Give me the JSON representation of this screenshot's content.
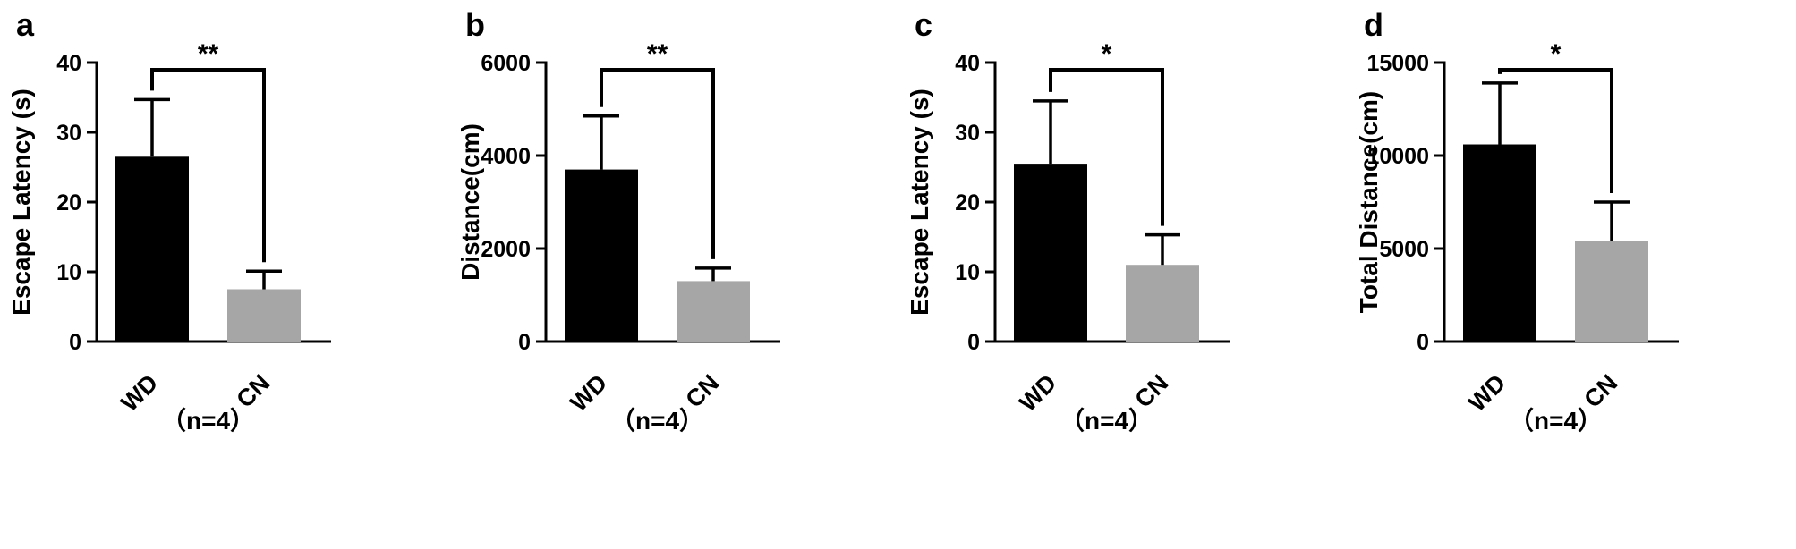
{
  "figure": {
    "background": "#ffffff",
    "bar_color_wd": "#000000",
    "bar_color_cn": "#a6a6a6",
    "line_color": "#000000"
  },
  "chart_data": [
    {
      "type": "bar",
      "panel_label": "a",
      "ylabel": "Escape Latency (s)",
      "xlabel": "",
      "ylim": [
        0,
        40
      ],
      "yticks": [
        0,
        10,
        20,
        30,
        40
      ],
      "categories": [
        "WD",
        "CN"
      ],
      "values": [
        26.5,
        7.5
      ],
      "errors_plus": [
        8.2,
        2.6
      ],
      "bar_colors": [
        "#000000",
        "#a6a6a6"
      ],
      "significance": "**",
      "sample_label": "（n=4）",
      "legend": "none",
      "grid": false
    },
    {
      "type": "bar",
      "panel_label": "b",
      "ylabel": "Distance(cm)",
      "xlabel": "",
      "ylim": [
        0,
        6000
      ],
      "yticks": [
        0,
        2000,
        4000,
        6000
      ],
      "categories": [
        "WD",
        "CN"
      ],
      "values": [
        3700,
        1300
      ],
      "errors_plus": [
        1150,
        280
      ],
      "bar_colors": [
        "#000000",
        "#a6a6a6"
      ],
      "significance": "**",
      "sample_label": "（n=4）",
      "legend": "none",
      "grid": false
    },
    {
      "type": "bar",
      "panel_label": "c",
      "ylabel": "Escape Latency (s)",
      "xlabel": "",
      "ylim": [
        0,
        40
      ],
      "yticks": [
        0,
        10,
        20,
        30,
        40
      ],
      "categories": [
        "WD",
        "CN"
      ],
      "values": [
        25.5,
        11.0
      ],
      "errors_plus": [
        9.0,
        4.3
      ],
      "bar_colors": [
        "#000000",
        "#a6a6a6"
      ],
      "significance": "*",
      "sample_label": "（n=4）",
      "legend": "none",
      "grid": false
    },
    {
      "type": "bar",
      "panel_label": "d",
      "ylabel": "Total Distance(cm)",
      "xlabel": "",
      "ylim": [
        0,
        15000
      ],
      "yticks": [
        0,
        5000,
        10000,
        15000
      ],
      "categories": [
        "WD",
        "CN"
      ],
      "values": [
        10600,
        5400
      ],
      "errors_plus": [
        3300,
        2100
      ],
      "bar_colors": [
        "#000000",
        "#a6a6a6"
      ],
      "significance": "*",
      "sample_label": "（n=4）",
      "legend": "none",
      "grid": false
    }
  ]
}
